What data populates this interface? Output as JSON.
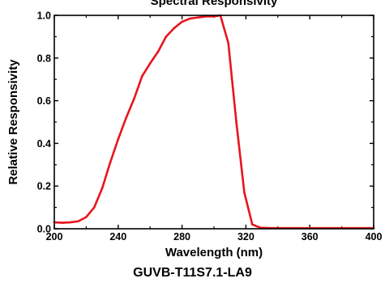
{
  "chart_data": {
    "type": "line",
    "title": "Spectral Responsivity",
    "xlabel": "Wavelength (nm)",
    "ylabel": "Relative Responsivity",
    "xlim": [
      200,
      400
    ],
    "ylim": [
      0.0,
      1.0
    ],
    "xticks": [
      200,
      240,
      280,
      320,
      360,
      400
    ],
    "xtick_labels": [
      "200",
      "240",
      "280",
      "320",
      "360",
      "400"
    ],
    "yticks": [
      0.0,
      0.2,
      0.4,
      0.6,
      0.8,
      1.0
    ],
    "ytick_labels": [
      "0.0",
      "0.2",
      "0.4",
      "0.6",
      "0.8",
      "1.0"
    ],
    "grid": false,
    "legend": "none",
    "series": [
      {
        "color": "#e8141c",
        "x": [
          200,
          205,
          210,
          215,
          220,
          225,
          230,
          235,
          240,
          245,
          250,
          255,
          260,
          265,
          270,
          275,
          280,
          285,
          290,
          295,
          300,
          304,
          309,
          314,
          319,
          324,
          329,
          335,
          345,
          360,
          380,
          400
        ],
        "y": [
          0.03,
          0.028,
          0.03,
          0.035,
          0.055,
          0.1,
          0.19,
          0.31,
          0.42,
          0.52,
          0.61,
          0.715,
          0.775,
          0.83,
          0.9,
          0.94,
          0.97,
          0.985,
          0.99,
          0.995,
          0.995,
          1.0,
          0.87,
          0.5,
          0.17,
          0.02,
          0.005,
          0.003,
          0.003,
          0.003,
          0.003,
          0.003
        ]
      }
    ]
  },
  "caption": "GUVB-T11S7.1-LA9"
}
